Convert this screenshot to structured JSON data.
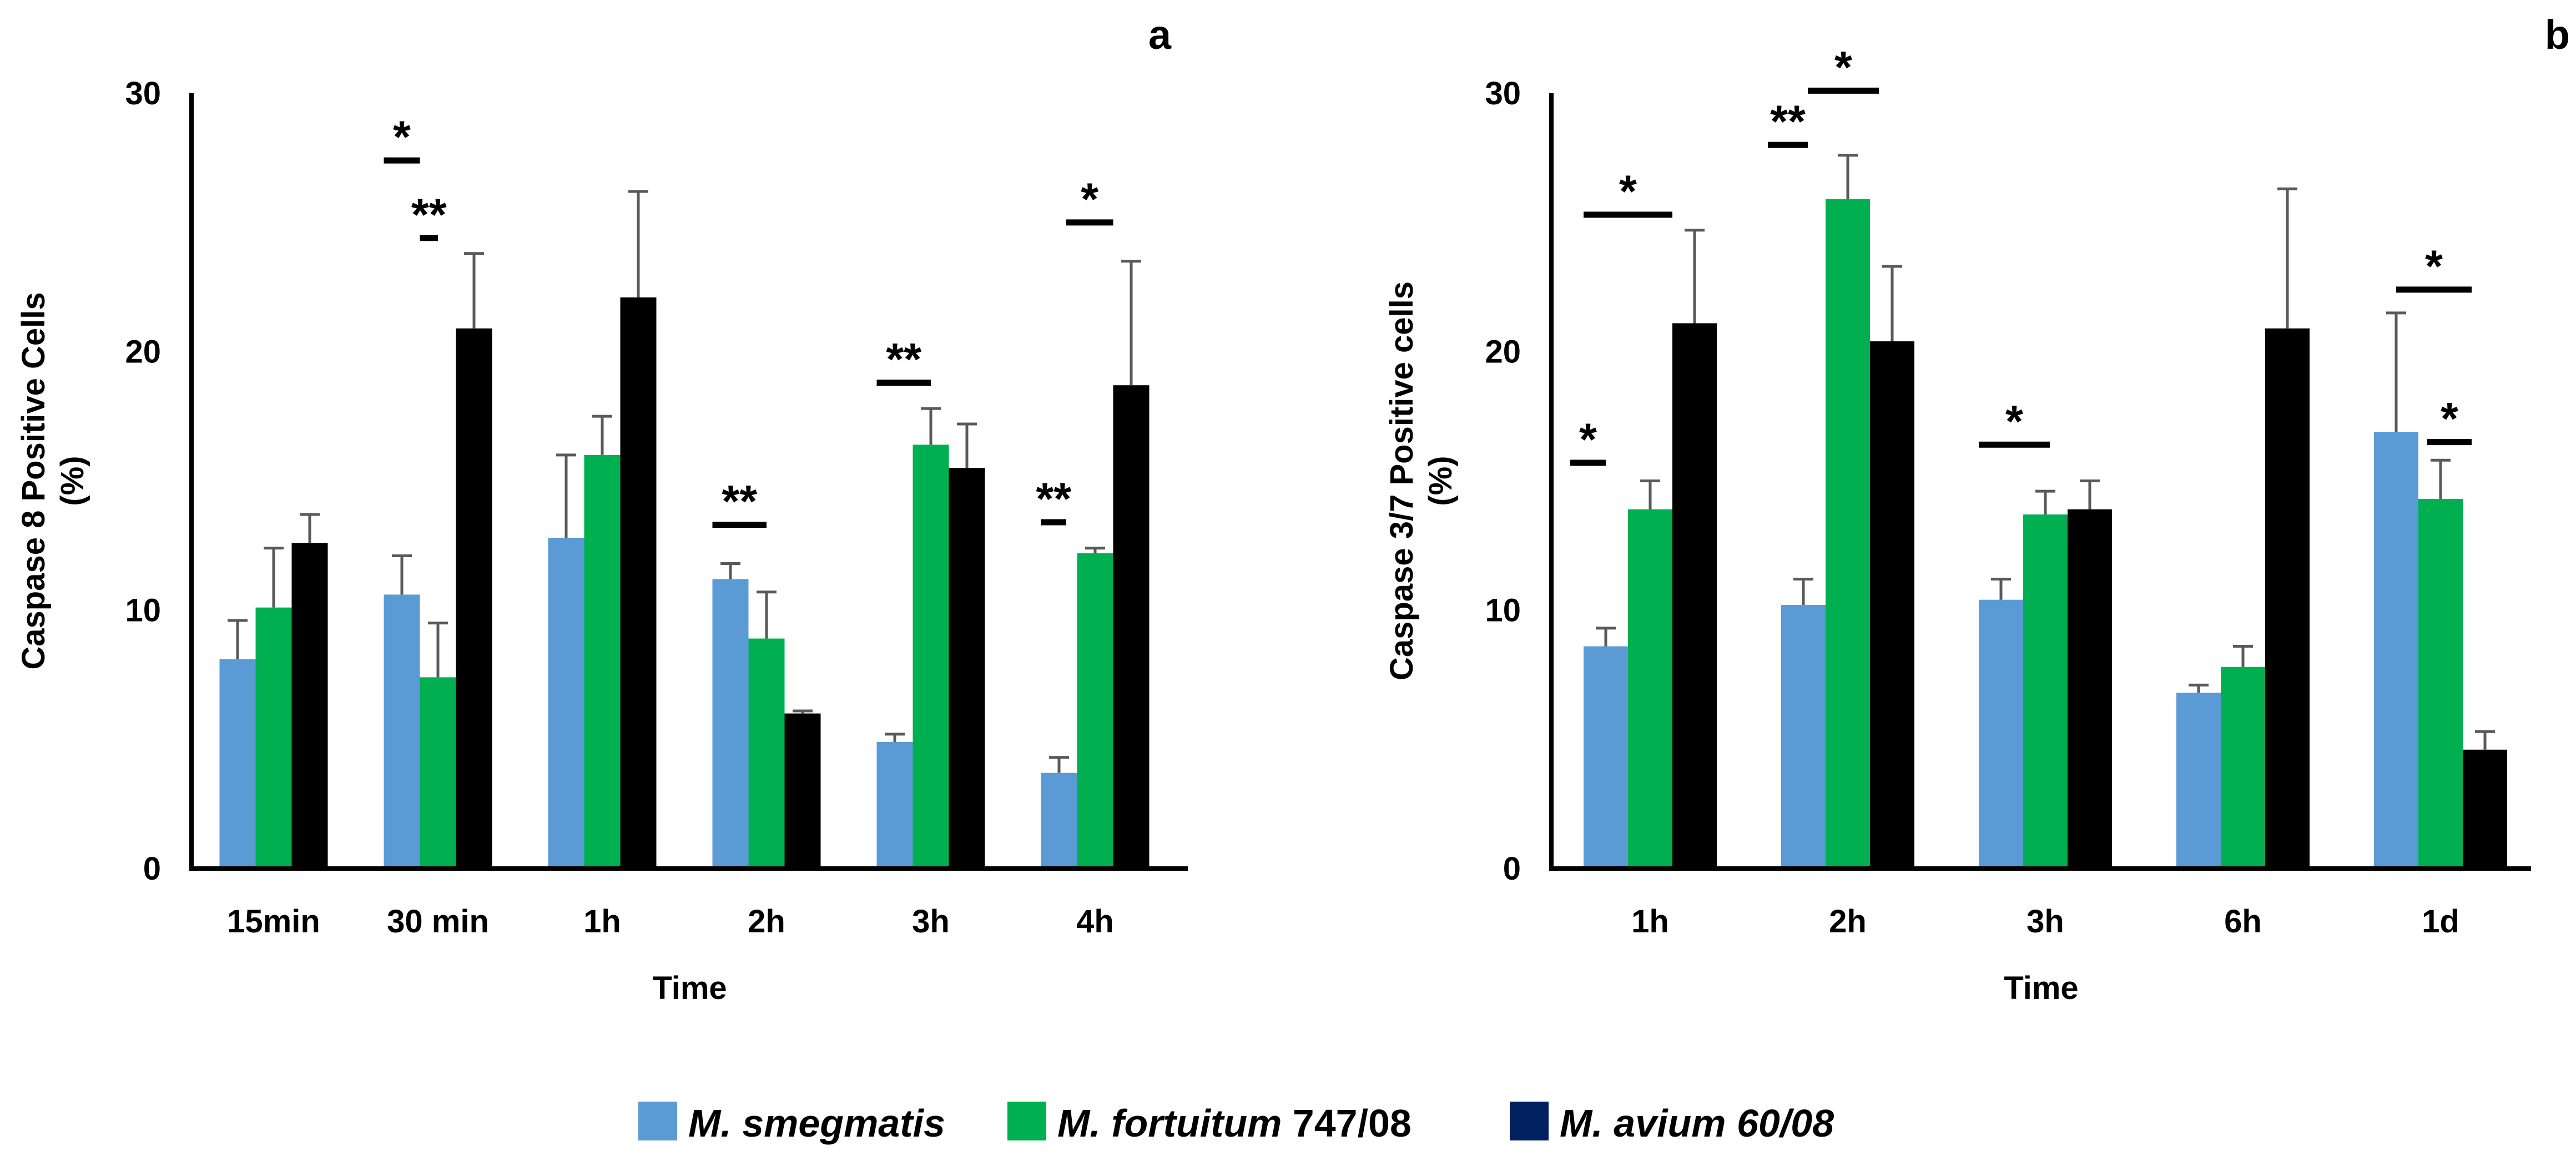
{
  "legend": {
    "items": [
      {
        "name": "M. smegmatis",
        "italic": "M. smegmatis",
        "plain": "",
        "color": "#5b9bd5"
      },
      {
        "name": "M. fortuitum 747/08",
        "italic": "M. fortuitum",
        "plain": " 747/08",
        "color": "#00b050"
      },
      {
        "name": "M. avium 60/08",
        "italic": "M. avium 60/08",
        "plain": "",
        "color": "#002060"
      }
    ]
  },
  "chart_data": [
    {
      "panel": "a",
      "type": "bar",
      "xlabel": "Time",
      "ylabel_line1": "Caspase 8  Positive Cells",
      "ylabel_line2": "(%)",
      "ylim": [
        0,
        30
      ],
      "yticks": [
        0,
        10,
        20,
        30
      ],
      "categories": [
        "15min",
        "30 min",
        "1h",
        "2h",
        "3h",
        "4h"
      ],
      "series": [
        {
          "name": "M. smegmatis",
          "color": "#5b9bd5",
          "values": [
            8.1,
            10.6,
            12.8,
            11.2,
            4.9,
            3.7
          ],
          "errors": [
            1.5,
            1.5,
            3.2,
            0.6,
            0.3,
            0.6
          ]
        },
        {
          "name": "M. fortuitum 747/08",
          "color": "#00b050",
          "values": [
            10.1,
            7.4,
            16.0,
            8.9,
            16.4,
            12.2
          ],
          "errors": [
            2.3,
            2.1,
            1.5,
            1.8,
            1.4,
            0.2
          ]
        },
        {
          "name": "M. avium 60/08",
          "color": "#000000",
          "values": [
            12.6,
            20.9,
            22.1,
            6.0,
            15.5,
            18.7
          ],
          "errors": [
            1.1,
            2.9,
            4.1,
            0.1,
            1.7,
            4.8
          ]
        }
      ],
      "significance": [
        {
          "label": "*",
          "category": 1,
          "from": 0,
          "to": 1,
          "y": 27.4
        },
        {
          "label": "**",
          "category": 1,
          "from": 1,
          "to": 1.5,
          "y": 24.4
        },
        {
          "label": "**",
          "category": 3,
          "from": 0,
          "to": 1.5,
          "y": 13.3
        },
        {
          "label": "**",
          "category": 4,
          "from": 0,
          "to": 1.5,
          "y": 18.8
        },
        {
          "label": "*",
          "category": 5,
          "from": 0.7,
          "to": 2,
          "y": 25.0
        },
        {
          "label": "**",
          "category": 5,
          "from": 0,
          "to": 0.7,
          "y": 13.4
        }
      ]
    },
    {
      "panel": "b",
      "type": "bar",
      "xlabel": "Time",
      "ylabel_line1": "Caspase 3/7  Positive cells",
      "ylabel_line2": "(%)",
      "ylim": [
        0,
        30
      ],
      "yticks": [
        0,
        10,
        20,
        30
      ],
      "categories": [
        "1h",
        "2h",
        "3h",
        "6h",
        "1d"
      ],
      "series": [
        {
          "name": "M. smegmatis",
          "color": "#5b9bd5",
          "values": [
            8.6,
            10.2,
            10.4,
            6.8,
            16.9
          ],
          "errors": [
            0.7,
            1.0,
            0.8,
            0.3,
            4.6
          ]
        },
        {
          "name": "M. fortuitum 747/08",
          "color": "#00b050",
          "values": [
            13.9,
            25.9,
            13.7,
            7.8,
            14.3
          ],
          "errors": [
            1.1,
            1.7,
            0.9,
            0.8,
            1.5
          ]
        },
        {
          "name": "M. avium 60/08",
          "color": "#000000",
          "values": [
            21.1,
            20.4,
            13.9,
            20.9,
            4.6
          ],
          "errors": [
            3.6,
            2.9,
            1.1,
            5.4,
            0.7
          ]
        }
      ],
      "significance": [
        {
          "label": "*",
          "category": 0,
          "from": -0.3,
          "to": 0.5,
          "y": 15.7
        },
        {
          "label": "*",
          "category": 0,
          "from": 0,
          "to": 2,
          "y": 25.3
        },
        {
          "label": "**",
          "category": 1,
          "from": -0.3,
          "to": 0.6,
          "y": 28.0
        },
        {
          "label": "*",
          "category": 1,
          "from": 0.6,
          "to": 2.2,
          "y": 30.1
        },
        {
          "label": "*",
          "category": 2,
          "from": 0,
          "to": 1.6,
          "y": 16.4
        },
        {
          "label": "*",
          "category": 4,
          "from": 0.5,
          "to": 2.2,
          "y": 22.4
        },
        {
          "label": "*",
          "category": 4,
          "from": 1.2,
          "to": 2.2,
          "y": 16.5
        }
      ]
    }
  ]
}
